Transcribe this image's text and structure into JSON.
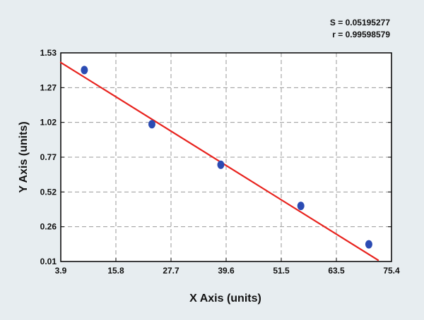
{
  "chart_data": {
    "type": "scatter",
    "xlabel": "X Axis (units)",
    "ylabel": "Y Axis (units)",
    "xlim": [
      3.9,
      75.4
    ],
    "ylim": [
      0.01,
      1.53
    ],
    "x_ticks": [
      "3.9",
      "15.8",
      "27.7",
      "39.6",
      "51.5",
      "63.5",
      "75.4"
    ],
    "y_ticks": [
      "1.53",
      "1.27",
      "1.02",
      "0.77",
      "0.52",
      "0.26",
      "0.01"
    ],
    "grid": true,
    "series": [
      {
        "x": [
          9.0,
          23.6,
          38.5,
          55.8,
          70.5
        ],
        "y": [
          1.405,
          1.01,
          0.715,
          0.415,
          0.135
        ],
        "color": "#2b4bb3"
      }
    ],
    "fit_line": {
      "x": [
        3.9,
        72.5
      ],
      "y": [
        1.46,
        0.02
      ],
      "color": "#e8231e"
    },
    "annotations": [
      "S = 0.05195277",
      "r = 0.99598579"
    ]
  }
}
